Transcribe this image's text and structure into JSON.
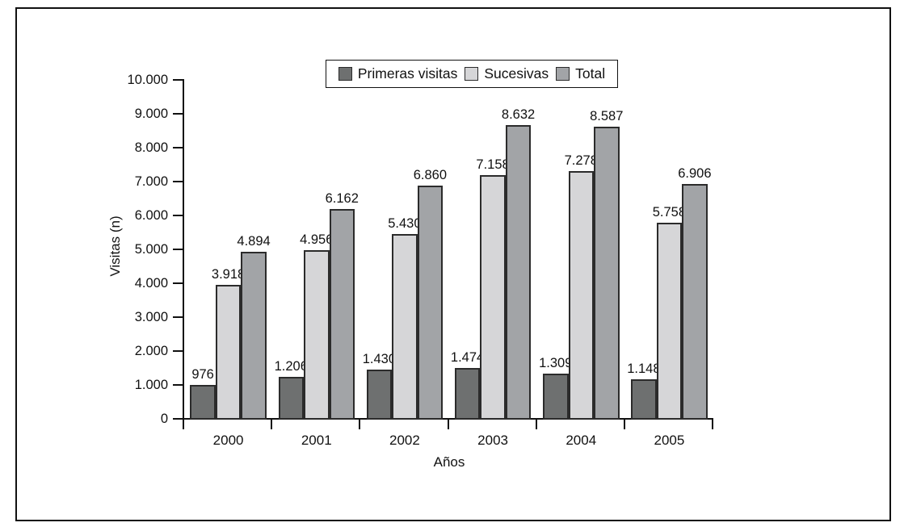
{
  "chart_data": {
    "type": "bar",
    "title": "",
    "categories": [
      "2000",
      "2001",
      "2002",
      "2003",
      "2004",
      "2005"
    ],
    "series": [
      {
        "name": "Primeras visitas",
        "color": "#6e7070",
        "values": [
          976,
          1206,
          1430,
          1474,
          1309,
          1148
        ],
        "labels": [
          "976",
          "1.206",
          "1.430",
          "1.474",
          "1.309",
          "1.148"
        ]
      },
      {
        "name": "Sucesivas",
        "color": "#d6d6d8",
        "values": [
          3918,
          4956,
          5430,
          7158,
          7278,
          5758
        ],
        "labels": [
          "3.918",
          "4.956",
          "5.430",
          "7.158",
          "7.278",
          "5.758"
        ]
      },
      {
        "name": "Total",
        "color": "#a2a4a7",
        "values": [
          4894,
          6162,
          6860,
          8632,
          8587,
          6906
        ],
        "labels": [
          "4.894",
          "6.162",
          "6.860",
          "8.632",
          "8.587",
          "6.906"
        ]
      }
    ],
    "xlabel": "Años",
    "ylabel": "Visitas (n)",
    "ylim": [
      0,
      10000
    ],
    "ytick_step": 1000,
    "ytick_labels": [
      "0",
      "1.000",
      "2.000",
      "3.000",
      "4.000",
      "5.000",
      "6.000",
      "7.000",
      "8.000",
      "9.000",
      "10.000"
    ],
    "legend_position": "top-center",
    "grid": "off",
    "colors": {
      "axis": "#111111",
      "bar_border": "#2b2b2b",
      "text": "#111111"
    }
  }
}
